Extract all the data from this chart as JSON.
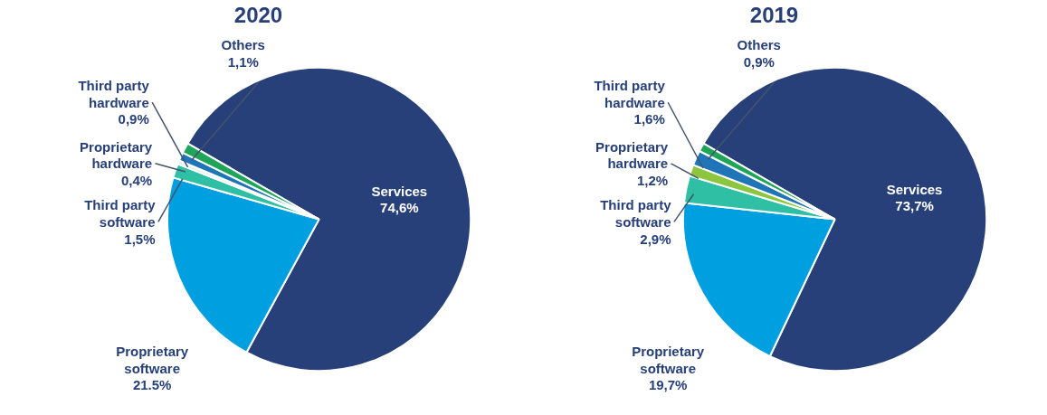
{
  "chart_data": [
    {
      "type": "pie",
      "title": "2020",
      "categories": [
        "Services",
        "Proprietary software",
        "Third party software",
        "Proprietary hardware",
        "Third party hardware",
        "Others"
      ],
      "values": [
        74.6,
        21.5,
        1.5,
        0.4,
        0.9,
        1.1
      ],
      "value_labels": [
        "74,6%",
        "21.5%",
        "1,5%",
        "0,4%",
        "0,9%",
        "1,1%"
      ],
      "colors": [
        "#27407a",
        "#009fe0",
        "#2ebfa5",
        "#e6f0f5",
        "#1f75b8",
        "#1fa55a"
      ]
    },
    {
      "type": "pie",
      "title": "2019",
      "categories": [
        "Services",
        "Proprietary software",
        "Third party software",
        "Proprietary hardware",
        "Third party hardware",
        "Others"
      ],
      "values": [
        73.7,
        19.7,
        2.9,
        1.2,
        1.6,
        0.9
      ],
      "value_labels": [
        "73,7%",
        "19,7%",
        "2,9%",
        "1,2%",
        "1,6%",
        "0,9%"
      ],
      "colors": [
        "#27407a",
        "#009fe0",
        "#2ebfa5",
        "#8cc63f",
        "#1f75b8",
        "#1fa55a"
      ]
    }
  ]
}
